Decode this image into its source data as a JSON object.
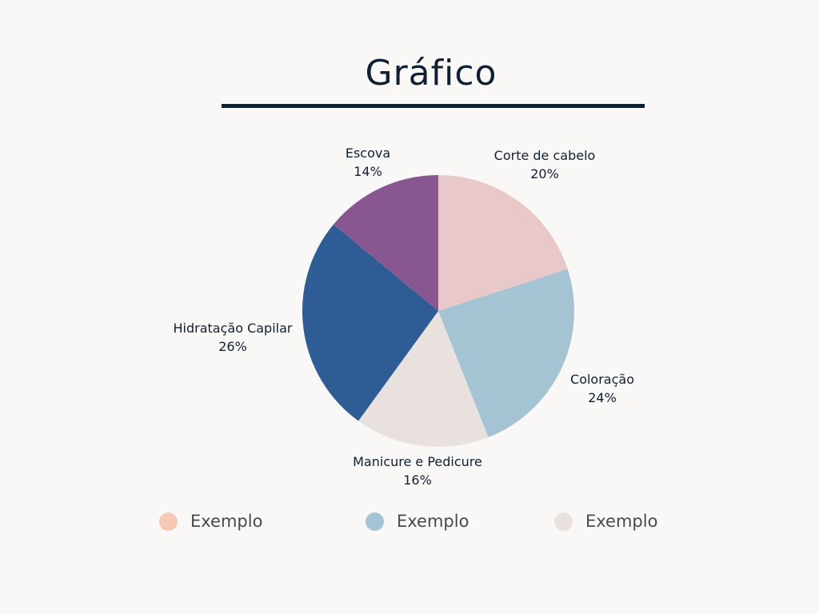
{
  "title": "Gráfico",
  "chart_data": {
    "type": "pie",
    "title": "Gráfico",
    "slices": [
      {
        "label": "Corte de cabelo",
        "value": 20,
        "display": "20%",
        "color": "#e8c8c8"
      },
      {
        "label": "Coloração",
        "value": 24,
        "display": "24%",
        "color": "#a4c4d3"
      },
      {
        "label": "Manicure e Pedicure",
        "value": 16,
        "display": "16%",
        "color": "#e8e1dd"
      },
      {
        "label": "Hidratação Capilar",
        "value": 26,
        "display": "26%",
        "color": "#2e5d96"
      },
      {
        "label": "Escova",
        "value": 14,
        "display": "14%",
        "color": "#885791"
      }
    ],
    "legend": {
      "placement": "bottom",
      "entries": [
        {
          "label": "Exemplo",
          "color": "#f7c9b4"
        },
        {
          "label": "Exemplo",
          "color": "#a4c4d3"
        },
        {
          "label": "Exemplo",
          "color": "#e8e1dd"
        }
      ]
    }
  }
}
